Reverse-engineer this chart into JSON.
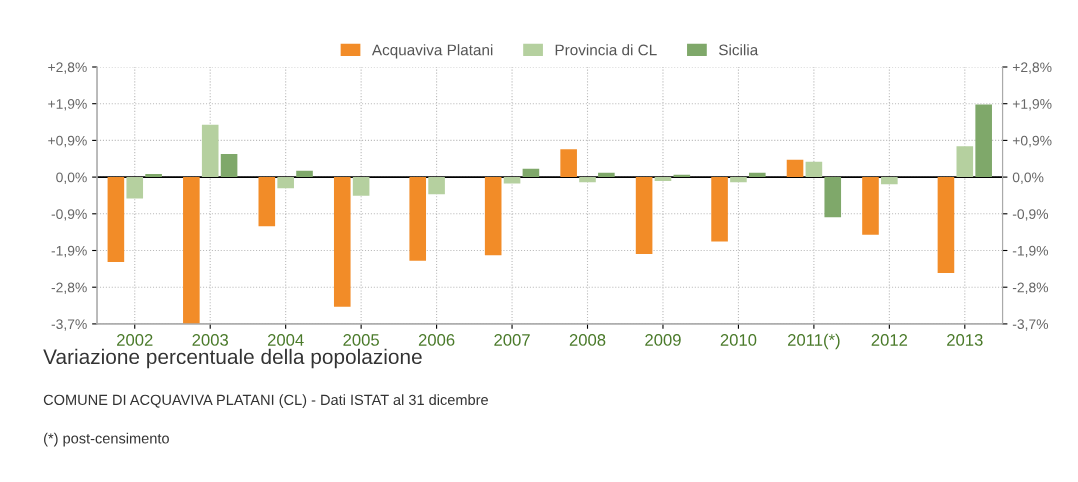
{
  "chart_data": {
    "type": "bar",
    "title": "Variazione percentuale della popolazione",
    "subtitle": "COMUNE DI ACQUAVIVA PLATANI (CL) - Dati ISTAT al 31 dicembre",
    "annotations": [
      "(*) post-censimento"
    ],
    "categories": [
      "2002",
      "2003",
      "2004",
      "2005",
      "2006",
      "2007",
      "2008",
      "2009",
      "2010",
      "2011(*)",
      "2012",
      "2013"
    ],
    "series": [
      {
        "name": "Acquaviva Platani",
        "color": "#f28c28",
        "values": [
          -2.14,
          -3.7,
          -1.24,
          -3.27,
          -2.11,
          -1.97,
          0.7,
          -1.94,
          -1.62,
          0.44,
          -1.45,
          -2.42
        ]
      },
      {
        "name": "Provincia di CL",
        "color": "#b5d09f",
        "values": [
          -0.54,
          1.32,
          -0.28,
          -0.47,
          -0.43,
          -0.16,
          -0.13,
          -0.1,
          -0.13,
          0.39,
          -0.18,
          0.78
        ]
      },
      {
        "name": "Sicilia",
        "color": "#7fa86a",
        "values": [
          0.08,
          0.58,
          0.16,
          null,
          0.0,
          0.21,
          0.11,
          0.06,
          0.11,
          -1.01,
          0.0,
          1.83
        ]
      }
    ],
    "ylim": [
      -3.7,
      2.775
    ],
    "yticks": [
      {
        "value": -3.7,
        "label": "-3,7%"
      },
      {
        "value": -2.775,
        "label": "-2,8%"
      },
      {
        "value": -1.85,
        "label": "-1,9%"
      },
      {
        "value": -0.925,
        "label": "-0,9%"
      },
      {
        "value": 0,
        "label": "0,0%"
      },
      {
        "value": 0.925,
        "label": "+0,9%"
      },
      {
        "value": 1.85,
        "label": "+1,9%"
      },
      {
        "value": 2.775,
        "label": "+2,8%"
      }
    ],
    "y2lim": [
      -3.7,
      2.775
    ],
    "y2ticks": [
      {
        "value": -3.7,
        "label": "-3,7%"
      },
      {
        "value": -2.775,
        "label": "-2,8%"
      },
      {
        "value": -1.85,
        "label": "-1,9%"
      },
      {
        "value": -0.925,
        "label": "-0,9%"
      },
      {
        "value": 0,
        "label": "0,0%"
      },
      {
        "value": 0.925,
        "label": "+0,9%"
      },
      {
        "value": 1.85,
        "label": "+1,9%"
      },
      {
        "value": 2.775,
        "label": "+2,8%"
      }
    ],
    "ref_lines": [
      {
        "axis": "y",
        "value": 0,
        "color": "#000000"
      }
    ],
    "grid": true,
    "legend": "top"
  }
}
